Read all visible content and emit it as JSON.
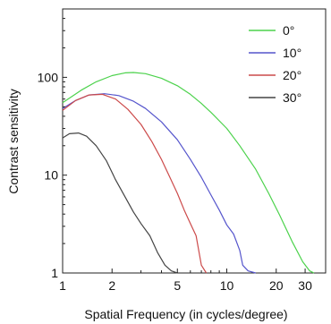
{
  "chart_data": {
    "type": "line",
    "xlabel": "Spatial Frequency (in cycles/degree)",
    "ylabel": "Contrast sensitivity",
    "x_scale": "log",
    "y_scale": "log",
    "xlim": [
      1,
      40
    ],
    "ylim": [
      1,
      500
    ],
    "x_ticks": [
      1,
      2,
      5,
      10,
      20,
      30
    ],
    "x_tick_labels": [
      "1",
      "2",
      "5",
      "10",
      "20",
      "30"
    ],
    "y_ticks": [
      1,
      10,
      100
    ],
    "y_tick_labels": [
      "1",
      "10",
      "100"
    ],
    "grid": false,
    "legend_position": "top-right",
    "series": [
      {
        "name": "0°",
        "color": "#4cd24c",
        "x": [
          1,
          1.3,
          1.6,
          2,
          2.4,
          2.7,
          3.2,
          4,
          5,
          6,
          7,
          8,
          10,
          12,
          15,
          18,
          21,
          25,
          29,
          32,
          34
        ],
        "y": [
          55,
          74,
          90,
          104,
          111,
          112,
          109,
          98,
          82,
          67,
          54,
          44,
          30,
          20,
          11.5,
          6.5,
          3.9,
          2.1,
          1.3,
          1.05,
          1
        ]
      },
      {
        "name": "10°",
        "color": "#5555cc",
        "x": [
          1,
          1.2,
          1.45,
          1.8,
          2.2,
          2.7,
          3.2,
          4,
          5,
          6,
          7,
          8,
          9,
          10,
          11,
          12,
          12.5,
          13.5,
          15
        ],
        "y": [
          48,
          58,
          66,
          68,
          65,
          57,
          48,
          35,
          23,
          14.5,
          9.5,
          6.3,
          4.4,
          3.1,
          2.5,
          1.7,
          1.2,
          1.05,
          1
        ]
      },
      {
        "name": "20°",
        "color": "#cc4a4a",
        "x": [
          1,
          1.2,
          1.45,
          1.75,
          2.1,
          2.5,
          3,
          3.5,
          4,
          4.5,
          5,
          5.5,
          6,
          6.5,
          7,
          7.5
        ],
        "y": [
          46,
          58,
          66,
          67,
          60,
          47,
          33,
          22,
          14.5,
          9.5,
          6.5,
          4.4,
          3.2,
          2.4,
          1.2,
          1
        ]
      },
      {
        "name": "30°",
        "color": "#444444",
        "x": [
          1,
          1.1,
          1.25,
          1.4,
          1.6,
          1.85,
          2.1,
          2.4,
          2.7,
          3,
          3.4,
          3.8,
          4.2,
          4.6,
          5
        ],
        "y": [
          24,
          26.5,
          27,
          25,
          20,
          14,
          9,
          6,
          4.2,
          3.2,
          2.4,
          1.6,
          1.2,
          1.05,
          1
        ]
      }
    ]
  }
}
